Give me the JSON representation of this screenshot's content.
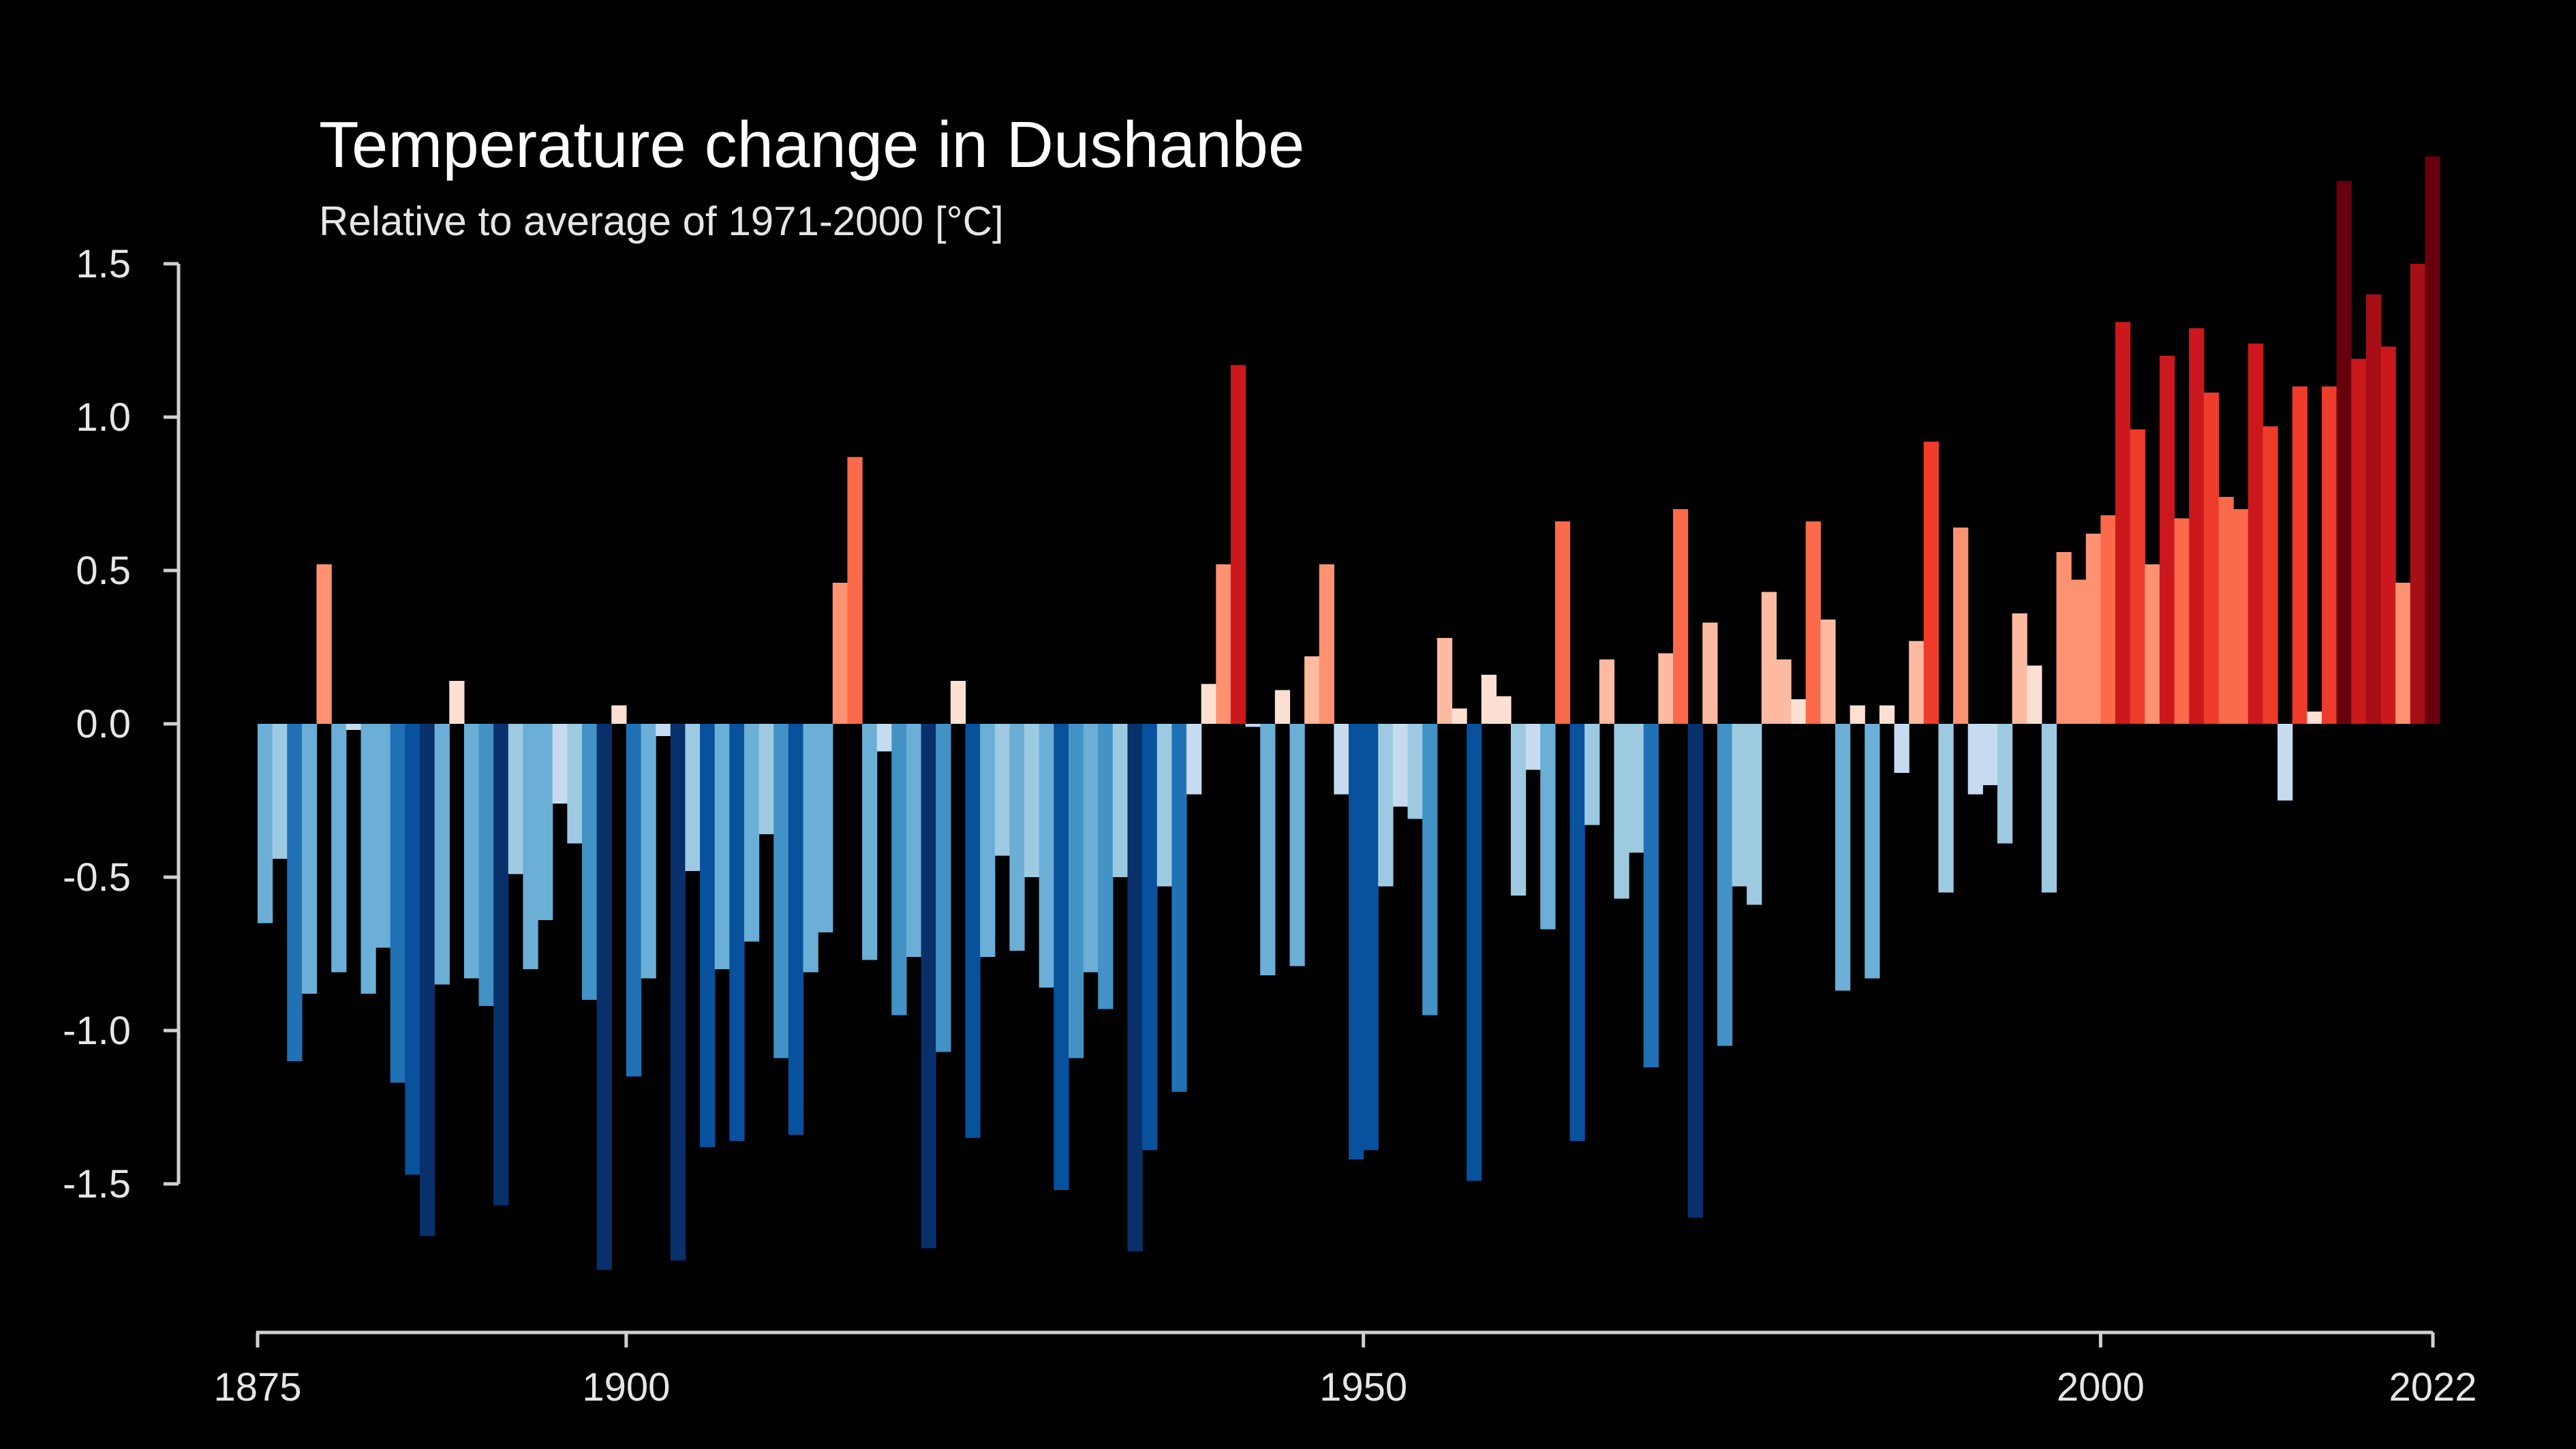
{
  "chart_data": {
    "type": "bar",
    "title": "Temperature change in Dushanbe",
    "subtitle": "Relative to average of 1971-2000  [°C]",
    "xlabel": "",
    "ylabel": "",
    "x_start": 1875,
    "x_end": 2022,
    "xlim": [
      1875,
      2022
    ],
    "ylim": [
      -1.8,
      1.85
    ],
    "x_ticks": [
      1875,
      1900,
      1950,
      2000,
      2022
    ],
    "y_ticks": [
      "1.5",
      "1.0",
      "0.5",
      "0.0",
      "-0.5",
      "-1.0",
      "-1.5"
    ],
    "grid": false,
    "legend": "none",
    "colors": {
      "background": "#000000",
      "text": "#e6e6e6",
      "axis": "#d0d0d0",
      "cold_scale": [
        "#c6dbef",
        "#9ecae1",
        "#6baed6",
        "#4292c6",
        "#2171b5",
        "#08519c",
        "#08306b"
      ],
      "warm_scale": [
        "#fee0d2",
        "#fcbba1",
        "#fc9272",
        "#fb6a4a",
        "#ef3b2c",
        "#cb181d",
        "#a50f15",
        "#67000d"
      ]
    },
    "values": [
      -0.65,
      -0.44,
      -1.1,
      -0.88,
      0.52,
      -0.81,
      -0.02,
      -0.88,
      -0.73,
      -1.17,
      -1.47,
      -1.67,
      -0.85,
      0.14,
      -0.83,
      -0.92,
      -1.57,
      -0.49,
      -0.8,
      -0.64,
      -0.26,
      -0.39,
      -0.9,
      -1.78,
      0.06,
      -1.15,
      -0.83,
      -0.04,
      -1.75,
      -0.48,
      -1.38,
      -0.8,
      -1.36,
      -0.71,
      -0.36,
      -1.09,
      -1.34,
      -0.81,
      -0.68,
      0.46,
      0.87,
      -0.77,
      -0.09,
      -0.95,
      -0.76,
      -1.71,
      -1.07,
      0.14,
      -1.35,
      -0.76,
      -0.43,
      -0.74,
      -0.5,
      -0.86,
      -1.52,
      -1.09,
      -0.81,
      -0.93,
      -0.5,
      -1.72,
      -1.39,
      -0.53,
      -1.2,
      -0.23,
      0.13,
      0.52,
      1.17,
      -0.01,
      -0.82,
      0.11,
      -0.79,
      0.22,
      0.52,
      -0.23,
      -1.42,
      -1.39,
      -0.53,
      -0.27,
      -0.31,
      -0.95,
      0.28,
      0.05,
      -1.49,
      0.16,
      0.09,
      -0.56,
      -0.15,
      -0.67,
      0.66,
      -1.36,
      -0.33,
      0.21,
      -0.57,
      -0.42,
      -1.12,
      0.23,
      0.7,
      -1.61,
      0.33,
      -1.05,
      -0.53,
      -0.59,
      0.43,
      0.21,
      0.08,
      0.66,
      0.34,
      -0.87,
      0.06,
      -0.83,
      0.06,
      -0.16,
      0.27,
      0.92,
      -0.55,
      0.64,
      -0.23,
      -0.2,
      -0.39,
      0.36,
      0.19,
      -0.55,
      0.56,
      0.47,
      0.62,
      0.68,
      1.31,
      0.96,
      0.52,
      1.2,
      0.67,
      1.29,
      1.08,
      0.74,
      0.7,
      1.24,
      0.97,
      -0.25,
      1.1,
      0.04,
      1.1,
      1.77,
      1.19,
      1.4,
      1.23,
      0.46,
      1.5,
      1.85
    ]
  }
}
